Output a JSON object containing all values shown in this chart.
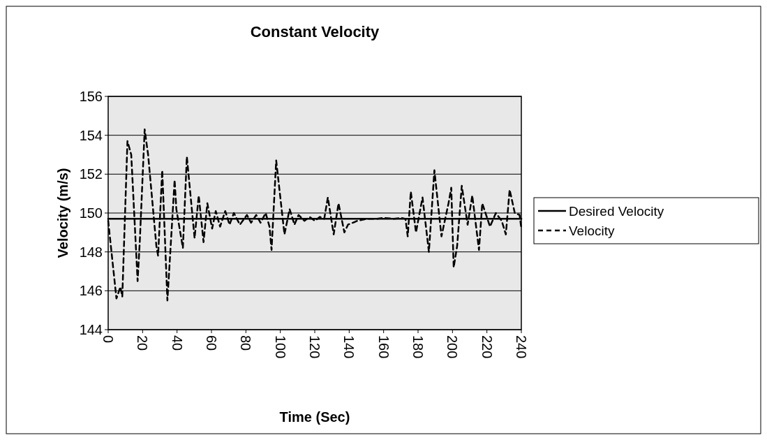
{
  "chart_data": {
    "type": "line",
    "title": "Constant Velocity",
    "xlabel": "Time (Sec)",
    "ylabel": "Velocity (m/s)",
    "xlim": [
      0,
      240
    ],
    "xticks": [
      0,
      20,
      40,
      60,
      80,
      100,
      120,
      140,
      160,
      180,
      200,
      220,
      240
    ],
    "ylim": [
      144,
      156
    ],
    "yticks": [
      144,
      146,
      148,
      150,
      152,
      154,
      156
    ],
    "grid": "y",
    "legend": "right",
    "marker": "none",
    "series": [
      {
        "name": "Desired Velocity",
        "color": "#000000",
        "line_style": "solid",
        "x": [
          0,
          240
        ],
        "values": [
          149.7,
          149.7
        ]
      },
      {
        "name": "Velocity",
        "color": "#000000",
        "line_style": "dashed",
        "x": [
          0,
          4.8,
          7.1,
          8.2,
          11.2,
          13.4,
          17.1,
          18.4,
          21.2,
          23.2,
          28,
          29,
          31.4,
          34.4,
          38.6,
          39.6,
          43.4,
          45.7,
          50.2,
          52.6,
          55.4,
          57.6,
          60.4,
          62.5,
          65,
          68,
          70.5,
          73,
          76.5,
          80.6,
          83,
          86,
          88.5,
          91.5,
          93.7,
          94.9,
          97.6,
          102.4,
          105.4,
          108.2,
          110.6,
          114,
          117,
          120,
          123,
          125.5,
          127.6,
          131,
          133.8,
          137.2,
          139.3,
          144.8,
          150,
          155.7,
          160,
          166,
          170,
          172.7,
          174,
          175.8,
          178.8,
          182.6,
          186.3,
          189.5,
          193.6,
          197.7,
          199.3,
          200.7,
          202.7,
          205.4,
          208.8,
          211.5,
          215.4,
          217.3,
          221.8,
          225.2,
          228.6,
          231,
          233.2,
          236.2,
          239,
          240
        ],
        "values": [
          149.6,
          145.6,
          146.2,
          145.7,
          153.7,
          153.0,
          146.5,
          148.6,
          154.3,
          153.0,
          148.3,
          147.8,
          152.2,
          145.5,
          151.7,
          150.2,
          148.2,
          152.9,
          148.7,
          150.9,
          148.5,
          150.5,
          149.2,
          150.1,
          149.3,
          150.1,
          149.4,
          150.0,
          149.4,
          149.9,
          149.5,
          149.9,
          149.5,
          150.0,
          149.3,
          148.1,
          152.7,
          148.9,
          150.2,
          149.4,
          149.9,
          149.6,
          149.8,
          149.6,
          149.8,
          149.7,
          150.8,
          148.9,
          150.5,
          149.0,
          149.4,
          149.6,
          149.7,
          149.7,
          149.75,
          149.7,
          149.75,
          149.7,
          148.8,
          151.1,
          149.0,
          150.8,
          148.0,
          152.2,
          148.8,
          150.5,
          151.3,
          147.2,
          148.3,
          151.4,
          149.4,
          150.9,
          148.1,
          150.5,
          149.3,
          150.0,
          149.6,
          148.9,
          151.2,
          150.0,
          149.9,
          149.2
        ]
      }
    ]
  }
}
